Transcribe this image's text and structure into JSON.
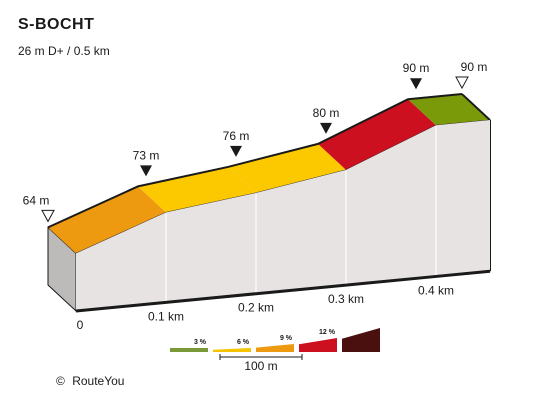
{
  "header": {
    "title": "S-BOCHT",
    "subtitle": "26 m D+ / 0.5 km"
  },
  "footer": {
    "copyright_symbol": "©",
    "brand": "RouteYou"
  },
  "legend": {
    "items": [
      {
        "label": "3 %",
        "color": "#7a9a3a"
      },
      {
        "label": "6 %",
        "color": "#f5c400"
      },
      {
        "label": "9 %",
        "color": "#ee9a10"
      },
      {
        "label": "12 %",
        "color": "#cc1020"
      },
      {
        "label": "",
        "color": "#4a1010"
      }
    ],
    "scale_label": "100 m"
  },
  "chart_data": {
    "type": "area",
    "title": "S-BOCHT",
    "subtitle": "26 m D+ / 0.5 km",
    "x_unit": "km",
    "y_unit": "m",
    "xlim": [
      0,
      0.5
    ],
    "x_ticks": [
      {
        "value": 0,
        "label": "0"
      },
      {
        "value": 0.1,
        "label": "0.1 km"
      },
      {
        "value": 0.2,
        "label": "0.2 km"
      },
      {
        "value": 0.3,
        "label": "0.3 km"
      },
      {
        "value": 0.4,
        "label": "0.4 km"
      }
    ],
    "profile_points": [
      {
        "x": 0.0,
        "elev": 64
      },
      {
        "x": 0.1,
        "elev": 73
      },
      {
        "x": 0.2,
        "elev": 76
      },
      {
        "x": 0.3,
        "elev": 80
      },
      {
        "x": 0.4,
        "elev": 90
      },
      {
        "x": 0.46,
        "elev": 90
      }
    ],
    "segments": [
      {
        "from": 0.0,
        "to": 0.1,
        "gradient_class": "9 %",
        "color": "#ee9a10"
      },
      {
        "from": 0.1,
        "to": 0.2,
        "gradient_class": "6 %",
        "color": "#fcc800"
      },
      {
        "from": 0.2,
        "to": 0.3,
        "gradient_class": "6 %",
        "color": "#fcc800"
      },
      {
        "from": 0.3,
        "to": 0.4,
        "gradient_class": "12 %",
        "color": "#cc1020"
      },
      {
        "from": 0.4,
        "to": 0.46,
        "gradient_class": "3 %",
        "color": "#7a9a0a"
      }
    ],
    "elevation_labels": [
      {
        "x": 0.0,
        "label": "64 m",
        "marker": "open"
      },
      {
        "x": 0.1,
        "label": "73 m",
        "marker": "filled"
      },
      {
        "x": 0.2,
        "label": "76 m",
        "marker": "filled"
      },
      {
        "x": 0.3,
        "label": "80 m",
        "marker": "filled"
      },
      {
        "x": 0.4,
        "label": "90 m",
        "marker": "filled"
      },
      {
        "x": 0.46,
        "label": "90 m",
        "marker": "open"
      }
    ]
  }
}
